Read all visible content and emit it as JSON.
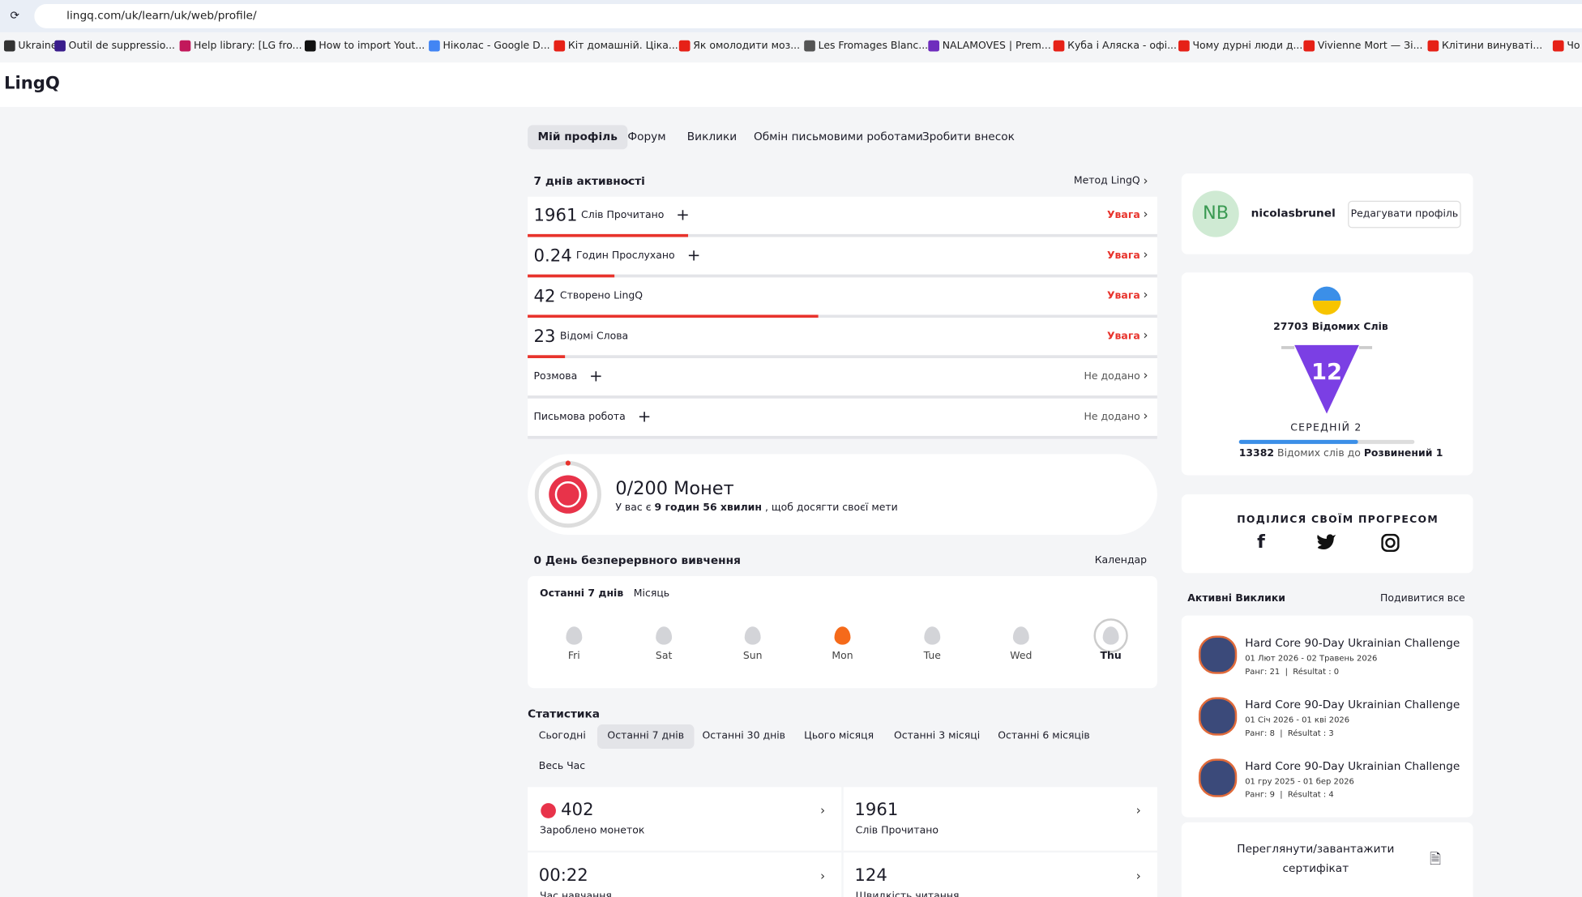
{
  "browser": {
    "url": "lingq.com/uk/learn/uk/web/profile/",
    "bookmarks": [
      "Ukraine",
      "Outil de suppressio...",
      "Help library: [LG fro...",
      "How to import Yout...",
      "Ніколас - Google D...",
      "Кіт домашній. Ціка...",
      "Як омолодити моз...",
      "Les Fromages Blanc...",
      "NALAMOVES | Prem...",
      "Куба і Аляска - офі...",
      "Чому дурні люди д...",
      "Vivienne Mort — Зі...",
      "Клітини винуваті...",
      "Чо"
    ]
  },
  "logo": "LingQ",
  "nav": [
    "Мій профіль",
    "Форум",
    "Виклики",
    "Обмін письмовими роботами",
    "Зробити внесок"
  ],
  "activity": {
    "title": "7 днів активності",
    "method": "Метод LingQ",
    "rows": [
      {
        "value": 1961,
        "label": "Слів Прочитано",
        "status": "Увага"
      },
      {
        "value": 0.24,
        "label": "Годин Прослухано",
        "status": "Увага"
      },
      {
        "value": 42,
        "label": "Створено LingQ",
        "status": "Увага"
      },
      {
        "value": 23,
        "label": "Відомі Слова",
        "status": "Увага"
      },
      {
        "label": "Розмова",
        "status": "Не додано"
      },
      {
        "label": "Письмова робота",
        "status": "Не додано"
      }
    ]
  },
  "coins": {
    "title": "0/200 Монет",
    "text_before": "У вас є",
    "time": "9 годин 56 хвилин",
    "text_after": ", щоб досягти своєї мети"
  },
  "streak": {
    "title": "0 День безперервного вивчення",
    "calendar": "Календар",
    "tabs": [
      "Останні 7 днів",
      "Місяць"
    ],
    "days": [
      "Fri",
      "Sat",
      "Sun",
      "Mon",
      "Tue",
      "Wed",
      "Thu"
    ]
  },
  "stats": {
    "title": "Статистика",
    "tabs": [
      "Сьогодні",
      "Останні 7 днів",
      "Останні 30 днів",
      "Цього місяця",
      "Останні 3 місяці",
      "Останні 6 місяців",
      "Весь Час"
    ],
    "cards": [
      {
        "value": 402,
        "label": "Зароблено монеток"
      },
      {
        "value": 1961,
        "label": "Слів Прочитано"
      },
      {
        "value": "00:22",
        "label": "Час навчання"
      },
      {
        "value": 124,
        "label": "Швидкість читання"
      }
    ]
  },
  "profile": {
    "initials": "NB",
    "username": "nicolasbrunel",
    "edit": "Редагувати профіль"
  },
  "level": {
    "known": "27703 Відомих Слів",
    "badge": "12",
    "name": "СЕРЕДНІЙ 2",
    "remaining": "13382",
    "remaining_text": "Відомих слів до",
    "next": "Розвинений 1"
  },
  "share": {
    "title": "ПОДІЛИСЯ СВОЇМ ПРОГРЕСОМ"
  },
  "challenges": {
    "title": "Активні Виклики",
    "see_all": "Подивитися все",
    "items": [
      {
        "name": "Hard Core 90-Day Ukrainian Challenge",
        "dates": "01 Лют 2026 - 02 Травень 2026",
        "meta": "Ранг: 21  |  Résultat : 0"
      },
      {
        "name": "Hard Core 90-Day Ukrainian Challenge",
        "dates": "01 Січ 2026 - 01 кві 2026",
        "meta": "Ранг: 8  |  Résultat : 3"
      },
      {
        "name": "Hard Core 90-Day Ukrainian Challenge",
        "dates": "01 гру 2025 - 01 бер 2026",
        "meta": "Ранг: 9  |  Résultat : 4"
      }
    ]
  },
  "certificate": "Переглянути/завантажити сертифікат"
}
